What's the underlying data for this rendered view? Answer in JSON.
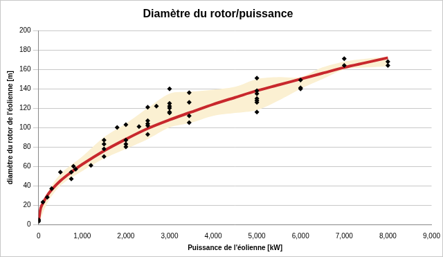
{
  "chart_data": {
    "type": "scatter",
    "title": "Diamètre du rotor/puissance",
    "x_label": "Puissance de l'éolienne [kW]",
    "y_label": "diamètre du rotor de l'éolienne [m]",
    "xlim": [
      0,
      9000
    ],
    "xticks": [
      0,
      1000,
      2000,
      3000,
      4000,
      5000,
      6000,
      7000,
      8000,
      9000
    ],
    "ylim": [
      0,
      200
    ],
    "yticks": [
      0,
      20,
      40,
      60,
      80,
      100,
      120,
      140,
      160,
      180,
      200
    ],
    "grid": "y",
    "legend": false,
    "series": [
      {
        "type": "scatter",
        "color": "#000000",
        "marker": "diamond",
        "x": [
          0,
          0,
          0,
          100,
          200,
          300,
          500,
          750,
          750,
          800,
          850,
          1200,
          1500,
          1500,
          1500,
          1500,
          1800,
          2000,
          2000,
          2000,
          2000,
          2300,
          2500,
          2500,
          2500,
          2500,
          2500,
          2700,
          3000,
          3000,
          3000,
          3000,
          3000,
          3000,
          3450,
          3450,
          3450,
          3450,
          5000,
          5000,
          5000,
          5000,
          5000,
          5000,
          5000,
          6000,
          6000,
          6000,
          7000,
          7000,
          8000,
          8000
        ],
        "values": [
          3,
          5,
          4,
          23,
          28,
          37,
          54,
          47,
          54,
          60,
          57,
          61,
          70,
          78,
          83,
          87,
          100,
          80,
          83,
          87,
          103,
          101,
          93,
          102,
          104,
          107,
          121,
          122,
          115,
          116,
          120,
          122,
          125,
          140,
          105,
          112,
          126,
          136,
          116,
          126,
          128,
          130,
          135,
          138,
          151,
          140,
          141,
          149,
          164,
          171,
          164,
          168
        ]
      },
      {
        "type": "line",
        "color": "#c8282d",
        "line_style": "solid",
        "x": [
          0,
          50,
          100,
          250,
          500,
          750,
          1000,
          1500,
          2000,
          2500,
          3000,
          3500,
          4000,
          4500,
          5000,
          5500,
          6000,
          6500,
          7000,
          7500,
          8000
        ],
        "values": [
          3,
          17,
          22,
          33,
          45,
          54,
          62,
          76,
          88,
          99,
          108,
          116,
          124,
          131,
          138,
          144,
          150,
          156,
          162,
          167,
          172
        ]
      },
      {
        "type": "band",
        "color": "#fbf0d2",
        "x": [
          0,
          200,
          500,
          1000,
          1500,
          2000,
          2500,
          3000,
          3500,
          4000,
          4500,
          5000,
          5500,
          6000,
          6500,
          7000,
          7500,
          8000
        ],
        "values": [
          8,
          32,
          52,
          70,
          90,
          104,
          120,
          135,
          137,
          139,
          142,
          150,
          152,
          152,
          162,
          168,
          171,
          173
        ],
        "lower": [
          0,
          22,
          40,
          55,
          68,
          78,
          88,
          100,
          105,
          112,
          115,
          118,
          128,
          140,
          150,
          160,
          162,
          163
        ]
      }
    ]
  }
}
